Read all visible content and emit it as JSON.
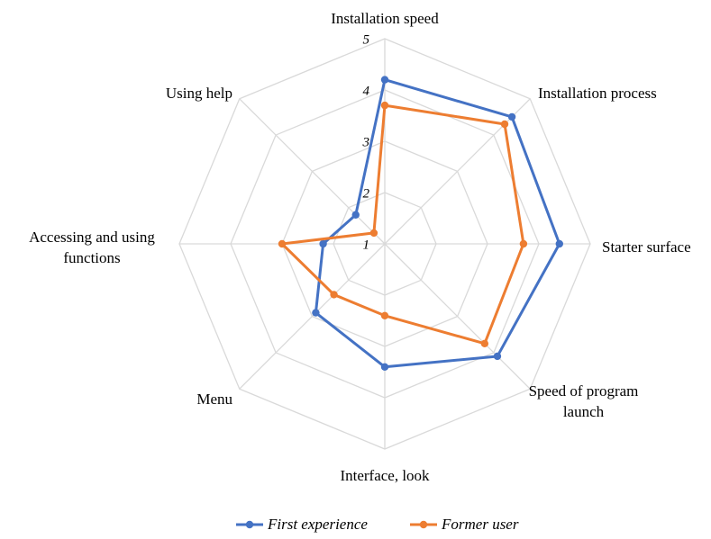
{
  "chart_data": {
    "type": "radar",
    "categories": [
      "Installation speed",
      "Installation process",
      "Starter surface",
      "Speed of program launch",
      "Interface, look",
      "Menu",
      "Accessing and using functions",
      "Using help"
    ],
    "series": [
      {
        "name": "First experience",
        "color": "#4472c4",
        "values": [
          4.2,
          4.5,
          4.4,
          4.1,
          3.4,
          2.9,
          2.2,
          1.8
        ]
      },
      {
        "name": "Former user",
        "color": "#ed7d31",
        "values": [
          3.7,
          4.3,
          3.7,
          3.75,
          2.4,
          2.4,
          3.0,
          1.3
        ]
      }
    ],
    "ylim": [
      1,
      5
    ],
    "yticks": [
      1,
      2,
      3,
      4,
      5
    ],
    "grid": true,
    "legend": "bottom"
  }
}
